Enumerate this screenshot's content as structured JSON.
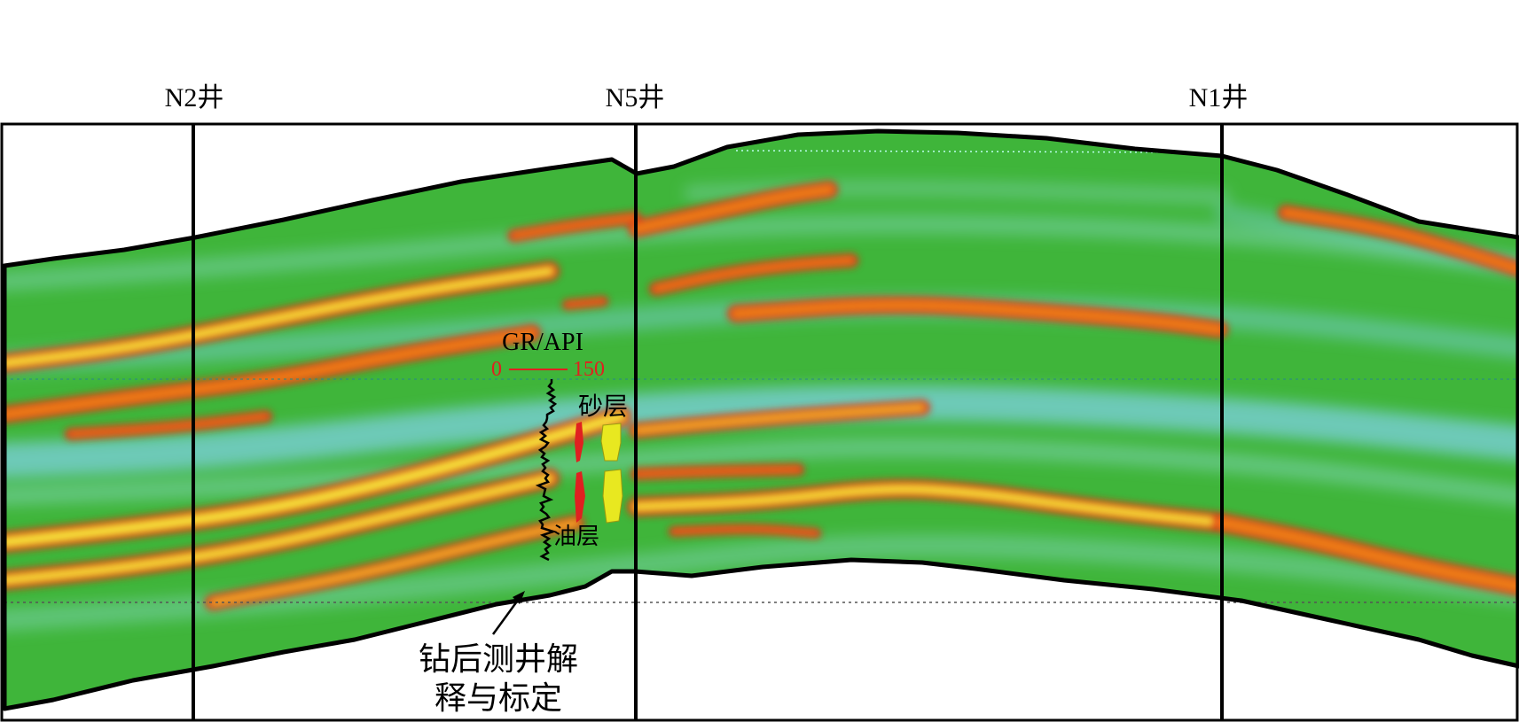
{
  "wells": [
    {
      "id": "n2",
      "label": "N2井"
    },
    {
      "id": "n5",
      "label": "N5井"
    },
    {
      "id": "n1",
      "label": "N1井"
    }
  ],
  "log_track": {
    "title": "GR/API",
    "scale_min": "0",
    "scale_max": "150",
    "sand_label": "砂层",
    "oil_label": "油层"
  },
  "annotation": {
    "line1": "钻后测井解",
    "line2": "释与标定"
  },
  "colors": {
    "background_green": "#3fb53a",
    "soft_layer": "#86d8c0",
    "cyan_layer": "#7cd0e0",
    "hot_red": "#e02a18",
    "hot_orange": "#f08a18",
    "hot_yellow": "#f8f040",
    "frame": "#000000",
    "log_curve": "#000000",
    "sand_fill": "#e8e820",
    "oil_fill": "#e02020",
    "scale_text": "#e02020"
  }
}
